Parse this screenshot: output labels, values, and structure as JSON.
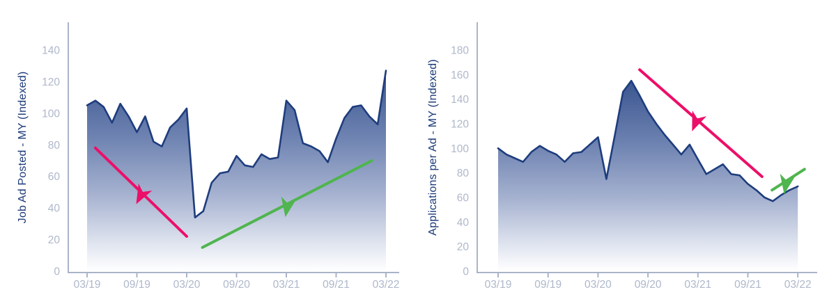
{
  "page": {
    "background": "#ffffff"
  },
  "chart_data": [
    {
      "type": "area",
      "name": "job-ads-posted",
      "title": "",
      "xlabel": "",
      "ylabel": "Job Ad Posted - MY (Indexed)",
      "x": [
        "03/19",
        "04/19",
        "05/19",
        "06/19",
        "07/19",
        "08/19",
        "09/19",
        "10/19",
        "11/19",
        "12/19",
        "01/20",
        "02/20",
        "03/20",
        "04/20",
        "05/20",
        "06/20",
        "07/20",
        "08/20",
        "09/20",
        "10/20",
        "11/20",
        "12/20",
        "01/21",
        "02/21",
        "03/21",
        "04/21",
        "05/21",
        "06/21",
        "07/21",
        "08/21",
        "09/21",
        "10/21",
        "11/21",
        "12/21",
        "01/22",
        "02/22",
        "03/22"
      ],
      "values": [
        105,
        108,
        104,
        94,
        106,
        98,
        88,
        98,
        82,
        79,
        91,
        96,
        103,
        34,
        38,
        56,
        62,
        63,
        73,
        67,
        66,
        74,
        71,
        72,
        108,
        102,
        81,
        79,
        76,
        69,
        84,
        97,
        104,
        105,
        98,
        93,
        127
      ],
      "x_tick_labels": [
        "03/19",
        "09/19",
        "03/20",
        "09/20",
        "03/21",
        "09/21",
        "03/22"
      ],
      "y_ticks": [
        0,
        20,
        40,
        60,
        80,
        100,
        120,
        140
      ],
      "ylim": [
        0,
        158
      ],
      "grid": false,
      "legend": "none",
      "colors": {
        "line": "#1e3d7d",
        "fill_top": "#3a5590",
        "fill_mid": "#6c81b0",
        "fill_low": "#a6b2d0",
        "fill_faint": "#dfe4ef",
        "fill_bottom": "#ffffff",
        "axis": "#a9b4c8",
        "tick_label": "#aeb7ca",
        "axis_title": "#1c3a78"
      },
      "annotations": [
        {
          "name": "downtrend-arrow",
          "kind": "trend-arrow",
          "direction": "down",
          "color": "#ec0f69",
          "from_month": 1.0,
          "from_value": 78,
          "to_month": 12.0,
          "to_value": 22,
          "head_t": 0.5,
          "head_angle_deg": 118
        },
        {
          "name": "uptrend-arrow",
          "kind": "trend-arrow",
          "direction": "up",
          "color": "#4fb54e",
          "from_month": 13.9,
          "from_value": 15,
          "to_month": 34.3,
          "to_value": 70,
          "head_t": 0.5,
          "head_angle_deg": 100
        }
      ]
    },
    {
      "type": "area",
      "name": "applications-per-ad",
      "title": "",
      "xlabel": "",
      "ylabel": "Applications per Ad - MY (Indexed)",
      "x": [
        "03/19",
        "04/19",
        "05/19",
        "06/19",
        "07/19",
        "08/19",
        "09/19",
        "10/19",
        "11/19",
        "12/19",
        "01/20",
        "02/20",
        "03/20",
        "04/20",
        "05/20",
        "06/20",
        "07/20",
        "08/20",
        "09/20",
        "10/20",
        "11/20",
        "12/20",
        "01/21",
        "02/21",
        "03/21",
        "04/21",
        "05/21",
        "06/21",
        "07/21",
        "08/21",
        "09/21",
        "10/21",
        "11/21",
        "12/21",
        "01/22",
        "02/22",
        "03/22"
      ],
      "values": [
        100,
        95,
        92,
        89,
        97,
        102,
        98,
        95,
        89,
        96,
        97,
        103,
        109,
        75,
        110,
        146,
        155,
        143,
        130,
        120,
        111,
        103,
        95,
        103,
        91,
        79,
        83,
        87,
        79,
        78,
        71,
        66,
        60,
        57,
        62,
        66,
        69
      ],
      "x_tick_labels": [
        "03/19",
        "09/19",
        "03/20",
        "09/20",
        "03/21",
        "09/21",
        "03/22"
      ],
      "y_ticks": [
        0,
        20,
        40,
        60,
        80,
        100,
        120,
        140,
        160,
        180
      ],
      "ylim": [
        0,
        203
      ],
      "grid": false,
      "legend": "none",
      "colors": {
        "line": "#1e3d7d",
        "fill_top": "#3a5590",
        "fill_mid": "#6c81b0",
        "fill_low": "#a6b2d0",
        "fill_faint": "#dfe4ef",
        "fill_bottom": "#ffffff",
        "axis": "#a9b4c8",
        "tick_label": "#aeb7ca",
        "axis_title": "#1c3a78"
      },
      "annotations": [
        {
          "name": "downtrend-arrow",
          "kind": "trend-arrow",
          "direction": "down",
          "color": "#ec0f69",
          "from_month": 17.0,
          "from_value": 164,
          "to_month": 31.7,
          "to_value": 77,
          "head_t": 0.46,
          "head_angle_deg": 112
        },
        {
          "name": "uptrend-arrow",
          "kind": "trend-arrow",
          "direction": "up",
          "color": "#4fb54e",
          "from_month": 32.9,
          "from_value": 66,
          "to_month": 36.8,
          "to_value": 83,
          "head_t": 0.43,
          "head_angle_deg": 100
        }
      ]
    }
  ]
}
